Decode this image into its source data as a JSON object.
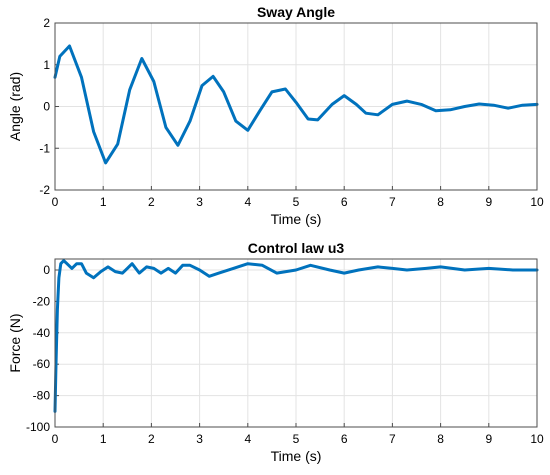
{
  "colors": {
    "series": "#0072BD",
    "grid": "#e3e3e3",
    "axis": "#4d4d4d"
  },
  "chart_data": [
    {
      "type": "line",
      "title": "Sway Angle",
      "xlabel": "Time (s)",
      "ylabel": "Angle (rad)",
      "xlim": [
        0,
        10
      ],
      "ylim": [
        -2,
        2
      ],
      "xticks": [
        0,
        1,
        2,
        3,
        4,
        5,
        6,
        7,
        8,
        9,
        10
      ],
      "yticks": [
        -2,
        -1,
        0,
        1,
        2
      ],
      "grid": true,
      "series": [
        {
          "x": [
            0,
            0.1,
            0.3,
            0.55,
            0.8,
            1.05,
            1.3,
            1.55,
            1.8,
            2.05,
            2.3,
            2.55,
            2.8,
            3.05,
            3.28,
            3.5,
            3.75,
            4.0,
            4.25,
            4.5,
            4.78,
            5.0,
            5.25,
            5.45,
            5.75,
            6.0,
            6.25,
            6.45,
            6.7,
            7.0,
            7.3,
            7.6,
            7.9,
            8.2,
            8.5,
            8.8,
            9.1,
            9.4,
            9.7,
            10.0
          ],
          "y": [
            0.7,
            1.2,
            1.45,
            0.7,
            -0.6,
            -1.35,
            -0.9,
            0.4,
            1.15,
            0.6,
            -0.5,
            -0.93,
            -0.35,
            0.5,
            0.72,
            0.35,
            -0.35,
            -0.57,
            -0.1,
            0.35,
            0.42,
            0.1,
            -0.3,
            -0.32,
            0.05,
            0.26,
            0.05,
            -0.16,
            -0.2,
            0.05,
            0.13,
            0.05,
            -0.1,
            -0.08,
            0.0,
            0.06,
            0.03,
            -0.04,
            0.03,
            0.05
          ]
        }
      ]
    },
    {
      "type": "line",
      "title": "Control law u3",
      "xlabel": "Time (s)",
      "ylabel": "Force (N)",
      "xlim": [
        0,
        10
      ],
      "ylim": [
        -100,
        7
      ],
      "xticks": [
        0,
        1,
        2,
        3,
        4,
        5,
        6,
        7,
        8,
        9,
        10
      ],
      "yticks": [
        -100,
        -80,
        -60,
        -40,
        -20,
        0
      ],
      "grid": true,
      "series": [
        {
          "x": [
            0,
            0.02,
            0.05,
            0.08,
            0.12,
            0.18,
            0.25,
            0.35,
            0.45,
            0.55,
            0.65,
            0.8,
            0.95,
            1.1,
            1.25,
            1.4,
            1.5,
            1.6,
            1.75,
            1.9,
            2.05,
            2.2,
            2.35,
            2.5,
            2.65,
            2.8,
            3.0,
            3.2,
            3.4,
            3.7,
            4.0,
            4.3,
            4.6,
            5.0,
            5.3,
            5.7,
            6.0,
            6.3,
            6.7,
            7.0,
            7.3,
            7.7,
            8.0,
            8.5,
            9.0,
            9.5,
            10.0
          ],
          "y": [
            -90,
            -60,
            -25,
            -5,
            4,
            6,
            4,
            1,
            4,
            4,
            -2,
            -5,
            -1,
            2,
            -1,
            -2,
            1,
            4,
            -2,
            2,
            1,
            -2,
            1,
            -2,
            3,
            3,
            0,
            -4,
            -2,
            1,
            4,
            3,
            -2,
            0,
            3,
            0,
            -2,
            0,
            2,
            1,
            0,
            1,
            2,
            0,
            1,
            0,
            0
          ]
        }
      ]
    }
  ]
}
